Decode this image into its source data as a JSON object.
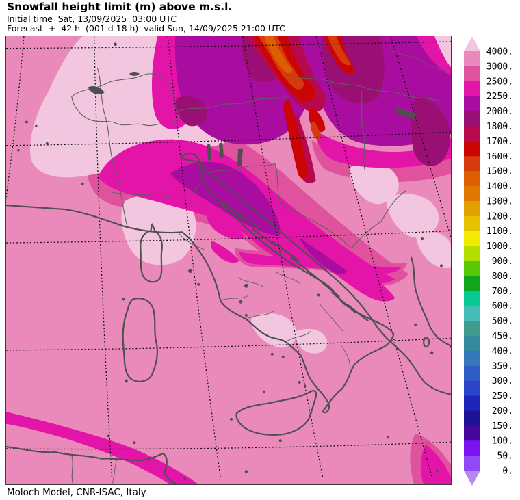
{
  "header": {
    "title": "Snowfall height limit (m) above m.s.l.",
    "initial_time": "Initial time  Sat, 13/09/2025  03:00 UTC",
    "forecast": "Forecast  +  42 h  (001 d 18 h)  valid Sun, 14/09/2025 21:00 UTC"
  },
  "footer": {
    "caption": "Moloch Model, CNR-ISAC, Italy"
  },
  "colorbar": {
    "unit": "m",
    "labels": [
      "4000.",
      "3000.",
      "2500.",
      "2250.",
      "2000.",
      "1800.",
      "1700.",
      "1600.",
      "1500.",
      "1400.",
      "1300.",
      "1200.",
      "1100.",
      "1000.",
      "900.",
      "800.",
      "700.",
      "600.",
      "500.",
      "450.",
      "400.",
      "350.",
      "300.",
      "250.",
      "200.",
      "150.",
      "100.",
      "50.",
      "0."
    ],
    "band_colors": [
      "#e98aba",
      "#e0519e",
      "#e315a9",
      "#a90d9f",
      "#9a0f73",
      "#b70a4e",
      "#cb0404",
      "#d53b0c",
      "#dd5f04",
      "#e07800",
      "#e0a000",
      "#e6c100",
      "#f2ea00",
      "#b5df00",
      "#58c907",
      "#0fa51e",
      "#06c993",
      "#45bcb7",
      "#419a8c",
      "#35899d",
      "#3579b8",
      "#2f5cc4",
      "#2b44c8",
      "#1f25bb",
      "#201297",
      "#45059f",
      "#7c12f0",
      "#9149f5"
    ],
    "arrow_top_color": "#f2c6de",
    "arrow_bottom_color": "#b489f2"
  },
  "map": {
    "base_color": "#e98aba",
    "coast_color": "#4f4f4f",
    "border_line_color": "#5f5f5f",
    "graticule_color": "#0a0a0a",
    "frame_color": "#3a3a3a"
  }
}
